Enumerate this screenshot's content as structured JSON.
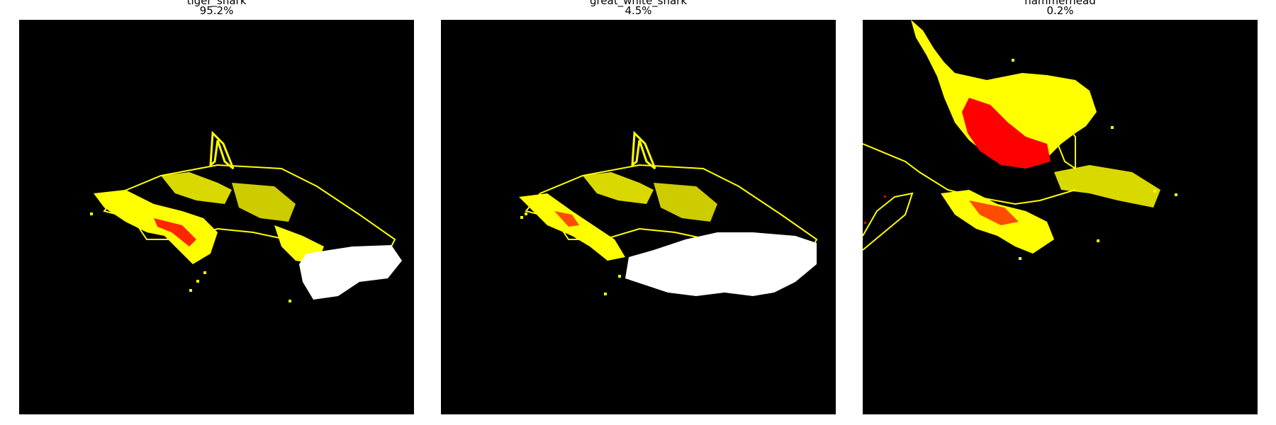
{
  "panels": [
    {
      "label": "tiger_shark",
      "score": "95.2%"
    },
    {
      "label": "great_white_shark",
      "score": "4.5%"
    },
    {
      "label": "hammerhead",
      "score": "0.2%"
    }
  ],
  "colors": {
    "background": "#000000",
    "outline": "#ffff00",
    "positive": "#ffffff",
    "negative": "#ff0000"
  }
}
